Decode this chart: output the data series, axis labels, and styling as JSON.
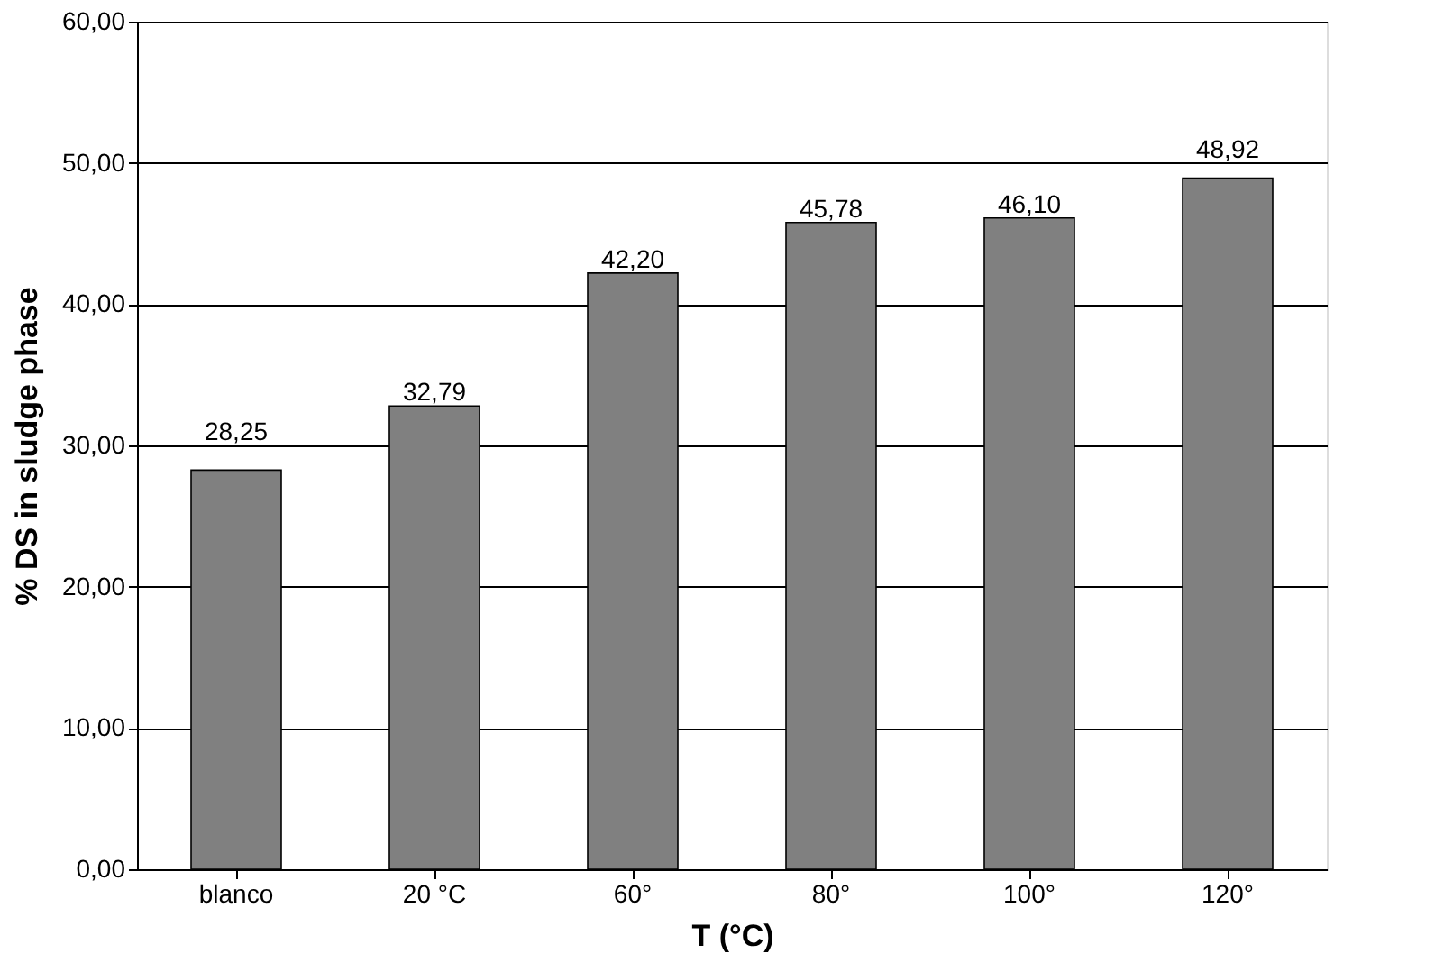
{
  "chart_data": {
    "type": "bar",
    "xlabel": "T (°C)",
    "ylabel": "% DS in sludge phase",
    "categories": [
      "blanco",
      "20 °C",
      "60°",
      "80°",
      "100°",
      "120°"
    ],
    "values": [
      28.25,
      32.79,
      42.2,
      45.78,
      46.1,
      48.92
    ],
    "value_labels": [
      "28,25",
      "32,79",
      "42,20",
      "45,78",
      "46,10",
      "48,92"
    ],
    "color": "#808080",
    "ylim": [
      0,
      60
    ],
    "yticks": [
      {
        "value": 0,
        "label": "0,00"
      },
      {
        "value": 10,
        "label": "10,00"
      },
      {
        "value": 20,
        "label": "20,00"
      },
      {
        "value": 30,
        "label": "30,00"
      },
      {
        "value": 40,
        "label": "40,00"
      },
      {
        "value": 50,
        "label": "50,00"
      },
      {
        "value": 60,
        "label": "60,00"
      }
    ],
    "grid": "y"
  }
}
